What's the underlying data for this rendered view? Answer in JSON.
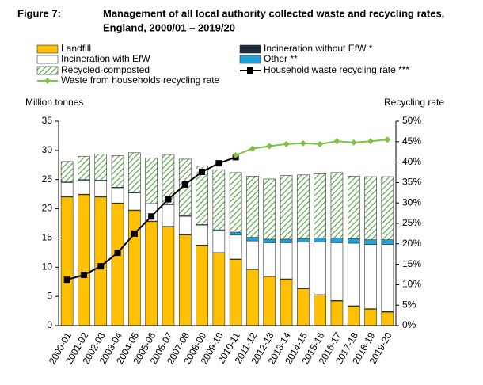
{
  "chart_data": {
    "type": "bar_line",
    "figure_label": "Figure 7:",
    "title": [
      "Management of all local authority collected waste and recycling rates,",
      "England, 2000/01 – 2019/20"
    ],
    "y_axis_label": "Million tonnes",
    "y2_axis_label": "Recycling rate",
    "categories": [
      "2000-01",
      "2001-02",
      "2002-03",
      "2003-04",
      "2004-05",
      "2005-06",
      "2006-07",
      "2007-08",
      "2008-09",
      "2009-10",
      "2010-11",
      "2011-12",
      "2012-13",
      "2013-14",
      "2014-15",
      "2015-16",
      "2016-17",
      "2017-18",
      "2018-19",
      "2019-20"
    ],
    "ylim": [
      0,
      35
    ],
    "yticks": [
      0,
      5,
      10,
      15,
      20,
      25,
      30,
      35
    ],
    "y2lim": [
      0,
      50
    ],
    "y2ticks": [
      {
        "value": 0,
        "label": "0%"
      },
      {
        "value": 5,
        "label": "5%"
      },
      {
        "value": 10,
        "label": "10%"
      },
      {
        "value": 15,
        "label": "15%"
      },
      {
        "value": 20,
        "label": "20%"
      },
      {
        "value": 25,
        "label": "25%"
      },
      {
        "value": 30,
        "label": "30%"
      },
      {
        "value": 35,
        "label": "35%"
      },
      {
        "value": 40,
        "label": "40%"
      },
      {
        "value": 45,
        "label": "45%"
      },
      {
        "value": 50,
        "label": "50%"
      }
    ],
    "series": [
      {
        "name": "Landfill",
        "kind": "bar",
        "color": "#ffc000",
        "values": [
          22.0,
          22.4,
          22.0,
          20.9,
          19.7,
          17.8,
          16.9,
          15.5,
          13.7,
          12.4,
          11.3,
          9.6,
          8.4,
          7.9,
          6.3,
          5.2,
          4.2,
          3.3,
          2.8,
          2.3
        ]
      },
      {
        "name": "Incineration without EfW *",
        "kind": "bar",
        "color": "#1f2a3c",
        "values": [
          0.1,
          0.1,
          0.1,
          0.1,
          0.1,
          0.1,
          0.1,
          0.1,
          0.1,
          0.1,
          0.1,
          0.1,
          0.1,
          0.1,
          0.1,
          0.1,
          0.1,
          0.1,
          0.1,
          0.1
        ]
      },
      {
        "name": "Incineration with EfW",
        "kind": "bar",
        "color": "#ffffff",
        "values": [
          2.4,
          2.4,
          2.7,
          2.6,
          2.9,
          2.9,
          3.7,
          3.1,
          3.4,
          3.7,
          4.1,
          4.8,
          5.7,
          6.2,
          7.9,
          9.0,
          9.9,
          10.7,
          11.0,
          11.5
        ]
      },
      {
        "name": "Other **",
        "kind": "bar",
        "color": "#1fa3dc",
        "values": [
          0.1,
          0.1,
          0.1,
          0.1,
          0.1,
          0.1,
          0.1,
          0.1,
          0.1,
          0.2,
          0.5,
          0.6,
          0.6,
          0.6,
          0.6,
          0.7,
          0.8,
          0.8,
          0.8,
          0.8
        ]
      },
      {
        "name": "Recycled-composted",
        "kind": "hatched_bar",
        "color": "#5aa84a",
        "values": [
          3.5,
          4.0,
          4.5,
          5.4,
          6.8,
          7.8,
          8.5,
          9.7,
          10.0,
          10.3,
          10.2,
          10.5,
          10.3,
          10.9,
          10.9,
          11.0,
          11.2,
          10.7,
          10.8,
          10.8
        ]
      },
      {
        "name": "Household waste recycling rate ***",
        "kind": "line",
        "marker": "square",
        "axis": "y2",
        "color": "#000000",
        "values": [
          11.2,
          12.4,
          14.5,
          17.8,
          22.5,
          26.7,
          30.9,
          34.5,
          37.6,
          39.7,
          41.2,
          null,
          null,
          null,
          null,
          null,
          null,
          null,
          null,
          null
        ]
      },
      {
        "name": "Waste from households recycling rate",
        "kind": "line",
        "marker": "diamond",
        "axis": "y2",
        "color": "#7dc242",
        "values": [
          null,
          null,
          null,
          null,
          null,
          null,
          null,
          null,
          null,
          null,
          41.7,
          43.3,
          43.9,
          44.4,
          44.6,
          44.4,
          45.1,
          44.8,
          45.1,
          45.5
        ]
      }
    ]
  }
}
